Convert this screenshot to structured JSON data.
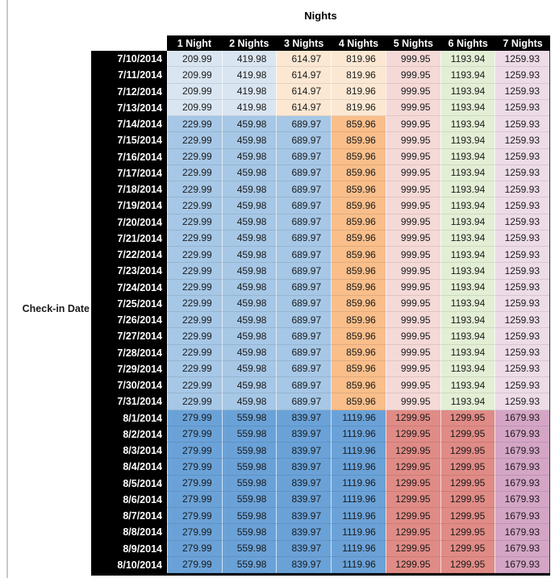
{
  "title": "Nights",
  "row_axis_label": "Check-in Date",
  "palettes": {
    "july_early": [
      "#d9e5f1",
      "#d9e5f1",
      "#fce8d2",
      "#fce8d2",
      "#f4d9d7",
      "#e3efd5",
      "#eddce8"
    ],
    "july_peak": [
      "#a6c7e6",
      "#a6c7e6",
      "#a6c7e6",
      "#f9be8a",
      "#f4d9d7",
      "#e3efd5",
      "#eddce8"
    ],
    "august": [
      "#6aa2d8",
      "#6aa2d8",
      "#6aa2d8",
      "#6aa2d8",
      "#e08b86",
      "#e08b86",
      "#d4a5c5"
    ]
  },
  "colors": {
    "header_bg": "#000000",
    "header_text": "#ffffff",
    "value_text": "#1a1a1a",
    "left_rule": "#c9c9c9"
  },
  "chart_data": {
    "type": "table",
    "title": "Nights",
    "row_axis_label": "Check-in Date",
    "columns": [
      "1 Night",
      "2 Nights",
      "3 Nights",
      "4 Nights",
      "5 Nights",
      "6 Nights",
      "7 Nights"
    ],
    "rows": [
      {
        "date": "7/10/2014",
        "palette": "july_early",
        "values": [
          "209.99",
          "419.98",
          "614.97",
          "819.96",
          "999.95",
          "1193.94",
          "1259.93"
        ]
      },
      {
        "date": "7/11/2014",
        "palette": "july_early",
        "values": [
          "209.99",
          "419.98",
          "614.97",
          "819.96",
          "999.95",
          "1193.94",
          "1259.93"
        ]
      },
      {
        "date": "7/12/2014",
        "palette": "july_early",
        "values": [
          "209.99",
          "419.98",
          "614.97",
          "819.96",
          "999.95",
          "1193.94",
          "1259.93"
        ]
      },
      {
        "date": "7/13/2014",
        "palette": "july_early",
        "values": [
          "209.99",
          "419.98",
          "614.97",
          "819.96",
          "999.95",
          "1193.94",
          "1259.93"
        ]
      },
      {
        "date": "7/14/2014",
        "palette": "july_peak",
        "values": [
          "229.99",
          "459.98",
          "689.97",
          "859.96",
          "999.95",
          "1193.94",
          "1259.93"
        ]
      },
      {
        "date": "7/15/2014",
        "palette": "july_peak",
        "values": [
          "229.99",
          "459.98",
          "689.97",
          "859.96",
          "999.95",
          "1193.94",
          "1259.93"
        ]
      },
      {
        "date": "7/16/2014",
        "palette": "july_peak",
        "values": [
          "229.99",
          "459.98",
          "689.97",
          "859.96",
          "999.95",
          "1193.94",
          "1259.93"
        ]
      },
      {
        "date": "7/17/2014",
        "palette": "july_peak",
        "values": [
          "229.99",
          "459.98",
          "689.97",
          "859.96",
          "999.95",
          "1193.94",
          "1259.93"
        ]
      },
      {
        "date": "7/18/2014",
        "palette": "july_peak",
        "values": [
          "229.99",
          "459.98",
          "689.97",
          "859.96",
          "999.95",
          "1193.94",
          "1259.93"
        ]
      },
      {
        "date": "7/19/2014",
        "palette": "july_peak",
        "values": [
          "229.99",
          "459.98",
          "689.97",
          "859.96",
          "999.95",
          "1193.94",
          "1259.93"
        ]
      },
      {
        "date": "7/20/2014",
        "palette": "july_peak",
        "values": [
          "229.99",
          "459.98",
          "689.97",
          "859.96",
          "999.95",
          "1193.94",
          "1259.93"
        ]
      },
      {
        "date": "7/21/2014",
        "palette": "july_peak",
        "values": [
          "229.99",
          "459.98",
          "689.97",
          "859.96",
          "999.95",
          "1193.94",
          "1259.93"
        ]
      },
      {
        "date": "7/22/2014",
        "palette": "july_peak",
        "values": [
          "229.99",
          "459.98",
          "689.97",
          "859.96",
          "999.95",
          "1193.94",
          "1259.93"
        ]
      },
      {
        "date": "7/23/2014",
        "palette": "july_peak",
        "values": [
          "229.99",
          "459.98",
          "689.97",
          "859.96",
          "999.95",
          "1193.94",
          "1259.93"
        ]
      },
      {
        "date": "7/24/2014",
        "palette": "july_peak",
        "values": [
          "229.99",
          "459.98",
          "689.97",
          "859.96",
          "999.95",
          "1193.94",
          "1259.93"
        ]
      },
      {
        "date": "7/25/2014",
        "palette": "july_peak",
        "values": [
          "229.99",
          "459.98",
          "689.97",
          "859.96",
          "999.95",
          "1193.94",
          "1259.93"
        ]
      },
      {
        "date": "7/26/2014",
        "palette": "july_peak",
        "values": [
          "229.99",
          "459.98",
          "689.97",
          "859.96",
          "999.95",
          "1193.94",
          "1259.93"
        ]
      },
      {
        "date": "7/27/2014",
        "palette": "july_peak",
        "values": [
          "229.99",
          "459.98",
          "689.97",
          "859.96",
          "999.95",
          "1193.94",
          "1259.93"
        ]
      },
      {
        "date": "7/28/2014",
        "palette": "july_peak",
        "values": [
          "229.99",
          "459.98",
          "689.97",
          "859.96",
          "999.95",
          "1193.94",
          "1259.93"
        ]
      },
      {
        "date": "7/29/2014",
        "palette": "july_peak",
        "values": [
          "229.99",
          "459.98",
          "689.97",
          "859.96",
          "999.95",
          "1193.94",
          "1259.93"
        ]
      },
      {
        "date": "7/30/2014",
        "palette": "july_peak",
        "values": [
          "229.99",
          "459.98",
          "689.97",
          "859.96",
          "999.95",
          "1193.94",
          "1259.93"
        ]
      },
      {
        "date": "7/31/2014",
        "palette": "july_peak",
        "values": [
          "229.99",
          "459.98",
          "689.97",
          "859.96",
          "999.95",
          "1193.94",
          "1259.93"
        ]
      },
      {
        "date": "8/1/2014",
        "palette": "august",
        "values": [
          "279.99",
          "559.98",
          "839.97",
          "1119.96",
          "1299.95",
          "1299.95",
          "1679.93"
        ]
      },
      {
        "date": "8/2/2014",
        "palette": "august",
        "values": [
          "279.99",
          "559.98",
          "839.97",
          "1119.96",
          "1299.95",
          "1299.95",
          "1679.93"
        ]
      },
      {
        "date": "8/3/2014",
        "palette": "august",
        "values": [
          "279.99",
          "559.98",
          "839.97",
          "1119.96",
          "1299.95",
          "1299.95",
          "1679.93"
        ]
      },
      {
        "date": "8/4/2014",
        "palette": "august",
        "values": [
          "279.99",
          "559.98",
          "839.97",
          "1119.96",
          "1299.95",
          "1299.95",
          "1679.93"
        ]
      },
      {
        "date": "8/5/2014",
        "palette": "august",
        "values": [
          "279.99",
          "559.98",
          "839.97",
          "1119.96",
          "1299.95",
          "1299.95",
          "1679.93"
        ]
      },
      {
        "date": "8/6/2014",
        "palette": "august",
        "values": [
          "279.99",
          "559.98",
          "839.97",
          "1119.96",
          "1299.95",
          "1299.95",
          "1679.93"
        ]
      },
      {
        "date": "8/7/2014",
        "palette": "august",
        "values": [
          "279.99",
          "559.98",
          "839.97",
          "1119.96",
          "1299.95",
          "1299.95",
          "1679.93"
        ]
      },
      {
        "date": "8/8/2014",
        "palette": "august",
        "values": [
          "279.99",
          "559.98",
          "839.97",
          "1119.96",
          "1299.95",
          "1299.95",
          "1679.93"
        ]
      },
      {
        "date": "8/9/2014",
        "palette": "august",
        "values": [
          "279.99",
          "559.98",
          "839.97",
          "1119.96",
          "1299.95",
          "1299.95",
          "1679.93"
        ]
      },
      {
        "date": "8/10/2014",
        "palette": "august",
        "values": [
          "279.99",
          "559.98",
          "839.97",
          "1119.96",
          "1299.95",
          "1299.95",
          "1679.93"
        ]
      }
    ]
  }
}
